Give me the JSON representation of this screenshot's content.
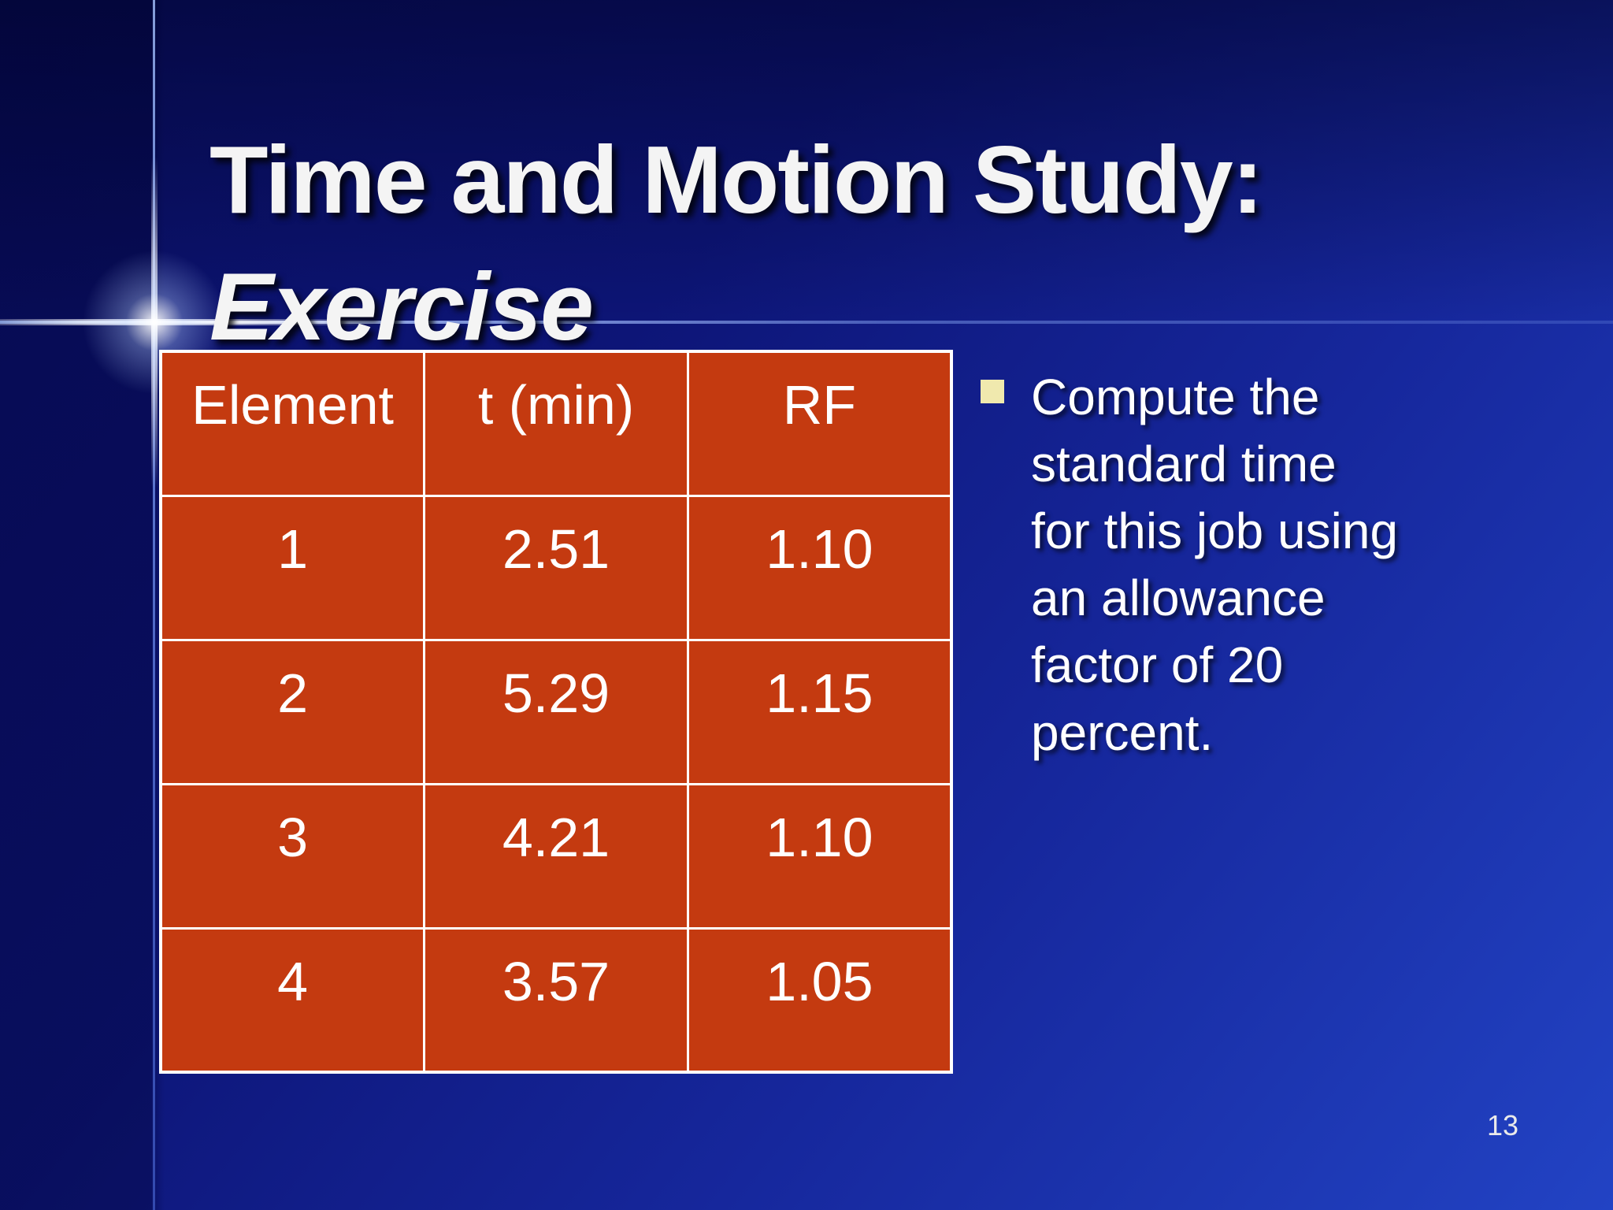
{
  "slide": {
    "title_line1": "Time and Motion Study:",
    "title_line2": "Exercise",
    "page_number": "13"
  },
  "table": {
    "headers": [
      "Element",
      "t (min)",
      "RF"
    ],
    "rows": [
      [
        "1",
        "2.51",
        "1.10"
      ],
      [
        "2",
        "5.29",
        "1.15"
      ],
      [
        "3",
        "4.21",
        "1.10"
      ],
      [
        "4",
        "3.57",
        "1.05"
      ]
    ]
  },
  "bullet": {
    "text": "Compute the\nstandard time\nfor this job using\nan allowance\nfactor of 20\npercent."
  },
  "colors": {
    "table_background": "#c43a10",
    "table_border": "#ffffff",
    "bullet_marker": "#f0e9ae",
    "background_dark": "#0a1066",
    "background_bright": "#2243c4",
    "title_text": "#f4f4f4",
    "body_text": "#ffffff"
  }
}
